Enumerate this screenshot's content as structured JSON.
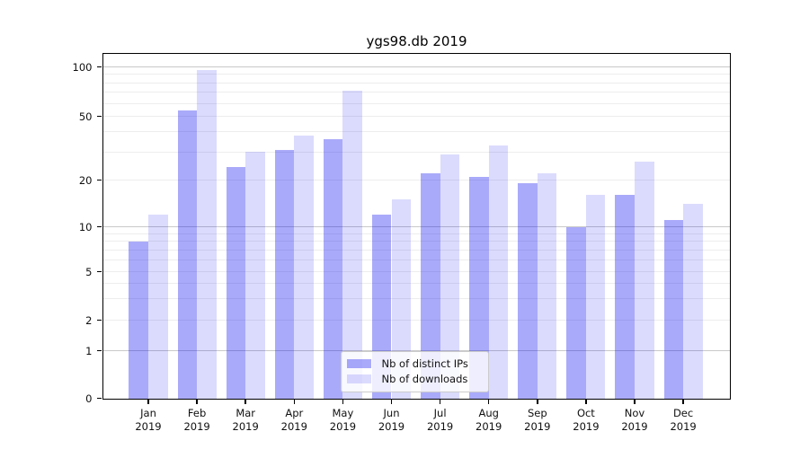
{
  "figure_title": "ygs98.db 2019",
  "chart_data": {
    "type": "bar",
    "title": "ygs98.db 2019",
    "categories": [
      "Jan 2019",
      "Feb 2019",
      "Mar 2019",
      "Apr 2019",
      "May 2019",
      "Jun 2019",
      "Jul 2019",
      "Aug 2019",
      "Sep 2019",
      "Oct 2019",
      "Nov 2019",
      "Dec 2019"
    ],
    "series": [
      {
        "name": "Nb of distinct IPs",
        "color": "#aaaafa",
        "color_rgba": "rgba(0,0,240,0.333)",
        "values": [
          8,
          54,
          24,
          31,
          36,
          12,
          22,
          21,
          19,
          10,
          16,
          11
        ]
      },
      {
        "name": "Nb of downloads",
        "color": "#dbdbfa",
        "color_rgba": "rgba(0,0,240,0.141)",
        "values": [
          12,
          96,
          30,
          38,
          72,
          15,
          29,
          33,
          22,
          16,
          26,
          14
        ]
      }
    ],
    "xlabel": "",
    "ylabel": "",
    "yscale": "log above 1, linear 0-1",
    "yticks": [
      0,
      1,
      2,
      5,
      10,
      20,
      50,
      100
    ],
    "yticks_major_grid": [
      1,
      10,
      100
    ],
    "yticks_minor": [
      3,
      4,
      6,
      7,
      8,
      9,
      30,
      40,
      60,
      70,
      80,
      90
    ],
    "ylim": [
      0,
      120
    ],
    "grid": true,
    "legend_position": "lower center"
  },
  "legend": {
    "items": [
      {
        "label": "Nb of distinct IPs"
      },
      {
        "label": "Nb of downloads"
      }
    ]
  }
}
